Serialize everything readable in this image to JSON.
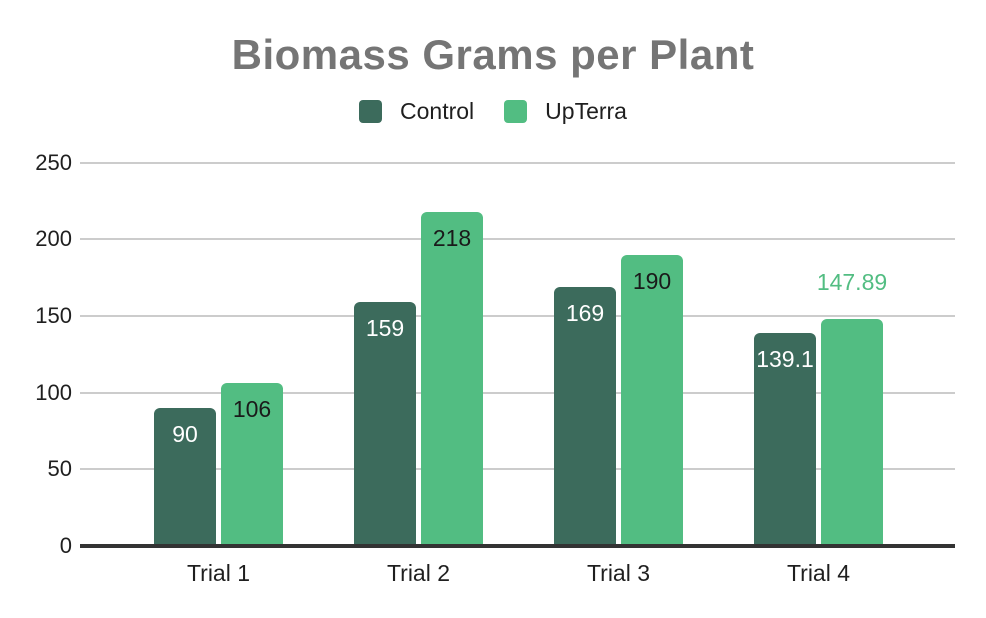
{
  "chart_data": {
    "type": "bar",
    "title": "Biomass Grams per Plant",
    "title_color": "#757575",
    "categories": [
      "Trial 1",
      "Trial 2",
      "Trial 3",
      "Trial 4"
    ],
    "series": [
      {
        "name": "Control",
        "color": "#3C6B5C",
        "label_color": "#FFFFFF",
        "values": [
          90,
          159,
          169,
          139.1
        ],
        "label_position": [
          "inside",
          "inside",
          "inside",
          "inside"
        ]
      },
      {
        "name": "UpTerra",
        "color": "#52BD82",
        "label_color": "#1A1A1A",
        "values": [
          106,
          218,
          190,
          147.89
        ],
        "label_position": [
          "inside",
          "inside",
          "inside",
          "outside"
        ]
      }
    ],
    "yticks": [
      0,
      50,
      100,
      150,
      200,
      250
    ],
    "ylim": [
      0,
      250
    ],
    "xlabel": "",
    "ylabel": "",
    "grid": true,
    "legend_position": "top",
    "axis_text_color": "#1F1F1F",
    "gridline_color": "#CCCCCC",
    "baseline_color": "#333333",
    "background": "#FFFFFF"
  }
}
